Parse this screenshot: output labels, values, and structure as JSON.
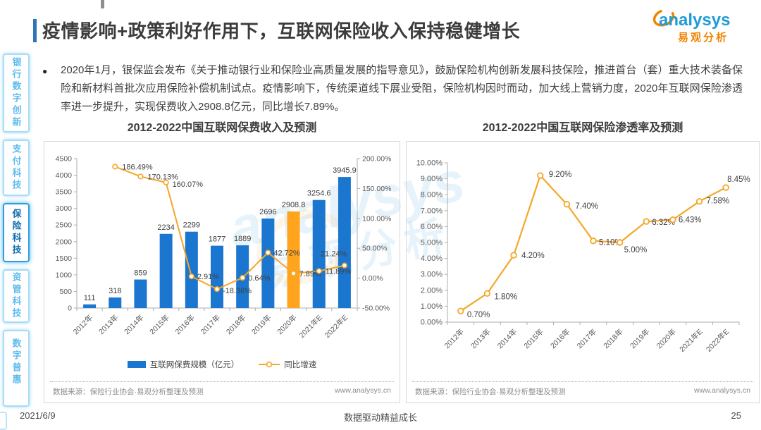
{
  "header": {
    "title": "疫情影响+政策利好作用下，互联网保险收入保持稳健增长",
    "logo_brand": "analysys",
    "logo_brand_cn": "易观分析"
  },
  "intro": {
    "bullet": "●",
    "text": "2020年1月，银保监会发布《关于推动银行业和保险业高质量发展的指导意见》，鼓励保险机构创新发展科技保险，推进首台（套）重大技术装备保险和新材料首批次应用保险补偿机制试点。疫情影响下，传统渠道线下展业受阻，保险机构因时而动，加大线上营销力度，2020年互联网保险渗透率进一步提升，实现保费收入2908.8亿元，同比增长7.89%。"
  },
  "sidebar": {
    "items": [
      {
        "label": "银行数字创新",
        "active": false
      },
      {
        "label": "支付科技",
        "active": false
      },
      {
        "label": "保险科技",
        "active": true
      },
      {
        "label": "资管科技",
        "active": false
      },
      {
        "label": "数字普惠",
        "active": false
      }
    ]
  },
  "chart_data": [
    {
      "type": "bar",
      "title": "2012-2022中国互联网保费收入及预测",
      "categories": [
        "2012年",
        "2013年",
        "2014年",
        "2015年",
        "2016年",
        "2017年",
        "2018年",
        "2019年",
        "2020年",
        "2021年E",
        "2022年E"
      ],
      "series": [
        {
          "name": "互联网保费规模（亿元）",
          "type": "bar",
          "values": [
            111,
            318,
            859,
            2234,
            2299,
            1877,
            1889,
            2696,
            2908.8,
            3254.6,
            3945.9
          ],
          "labels": [
            "111",
            "318",
            "859",
            "2234",
            "2299",
            "1877",
            "1889",
            "2696",
            "2908.8",
            "3254.6",
            "3945.9"
          ],
          "highlight_index": 8
        },
        {
          "name": "同比增速",
          "type": "line",
          "values": [
            null,
            186.49,
            170.13,
            160.07,
            2.91,
            -18.36,
            0.64,
            42.72,
            7.89,
            11.89,
            21.24
          ],
          "labels": [
            null,
            "186.49%",
            "170.13%",
            "160.07%",
            "2.91%",
            "-18.36%",
            "0.64%",
            "42.72%",
            "7.89%",
            "11.89%",
            "21.24%"
          ]
        }
      ],
      "y_left": {
        "min": 0,
        "max": 4500,
        "step": 500
      },
      "y_right": {
        "min": -50,
        "max": 200,
        "step": 50,
        "format": "percent"
      },
      "xlabel": "",
      "ylabel": "",
      "grid": false,
      "legend_position": "bottom",
      "source": "数据来源：保险行业协会·易观分析整理及预测",
      "source_url": "www.analysys.cn"
    },
    {
      "type": "line",
      "title": "2012-2022中国互联网保险渗透率及预测",
      "categories": [
        "2012年",
        "2013年",
        "2014年",
        "2015年",
        "2016年",
        "2017年",
        "2018年",
        "2019年",
        "2020年",
        "2021年E",
        "2022年E"
      ],
      "series": [
        {
          "name": "互联网保险渗透率",
          "type": "line",
          "values": [
            0.7,
            1.8,
            4.2,
            9.2,
            7.4,
            5.1,
            5.0,
            6.32,
            6.43,
            7.58,
            8.45
          ],
          "labels": [
            "0.70%",
            "1.80%",
            "4.20%",
            "9.20%",
            "7.40%",
            "5.10%",
            "5.00%",
            "6.32%",
            "6.43%",
            "7.58%",
            "8.45%"
          ]
        }
      ],
      "y_left": {
        "min": 0,
        "max": 10,
        "step": 1,
        "format": "percent2"
      },
      "xlabel": "",
      "ylabel": "",
      "grid": false,
      "legend_position": "none",
      "source": "数据来源：保险行业协会·易观分析整理及预测",
      "source_url": "www.analysys.cn"
    }
  ],
  "footer": {
    "date": "2021/6/9",
    "slogan": "数据驱动精益成长",
    "page_number": "25"
  },
  "colors": {
    "bar_blue": "#1B76CF",
    "bar_highlight_orange": "#FFA41C",
    "line_orange": "#F5A728",
    "accent_blue": "#2E75B6",
    "sidebar_active_blue": "#0E6CB0",
    "logo_blue": "#1E9CD7",
    "logo_orange": "#F08300",
    "axis_gray": "#ADADAD"
  }
}
